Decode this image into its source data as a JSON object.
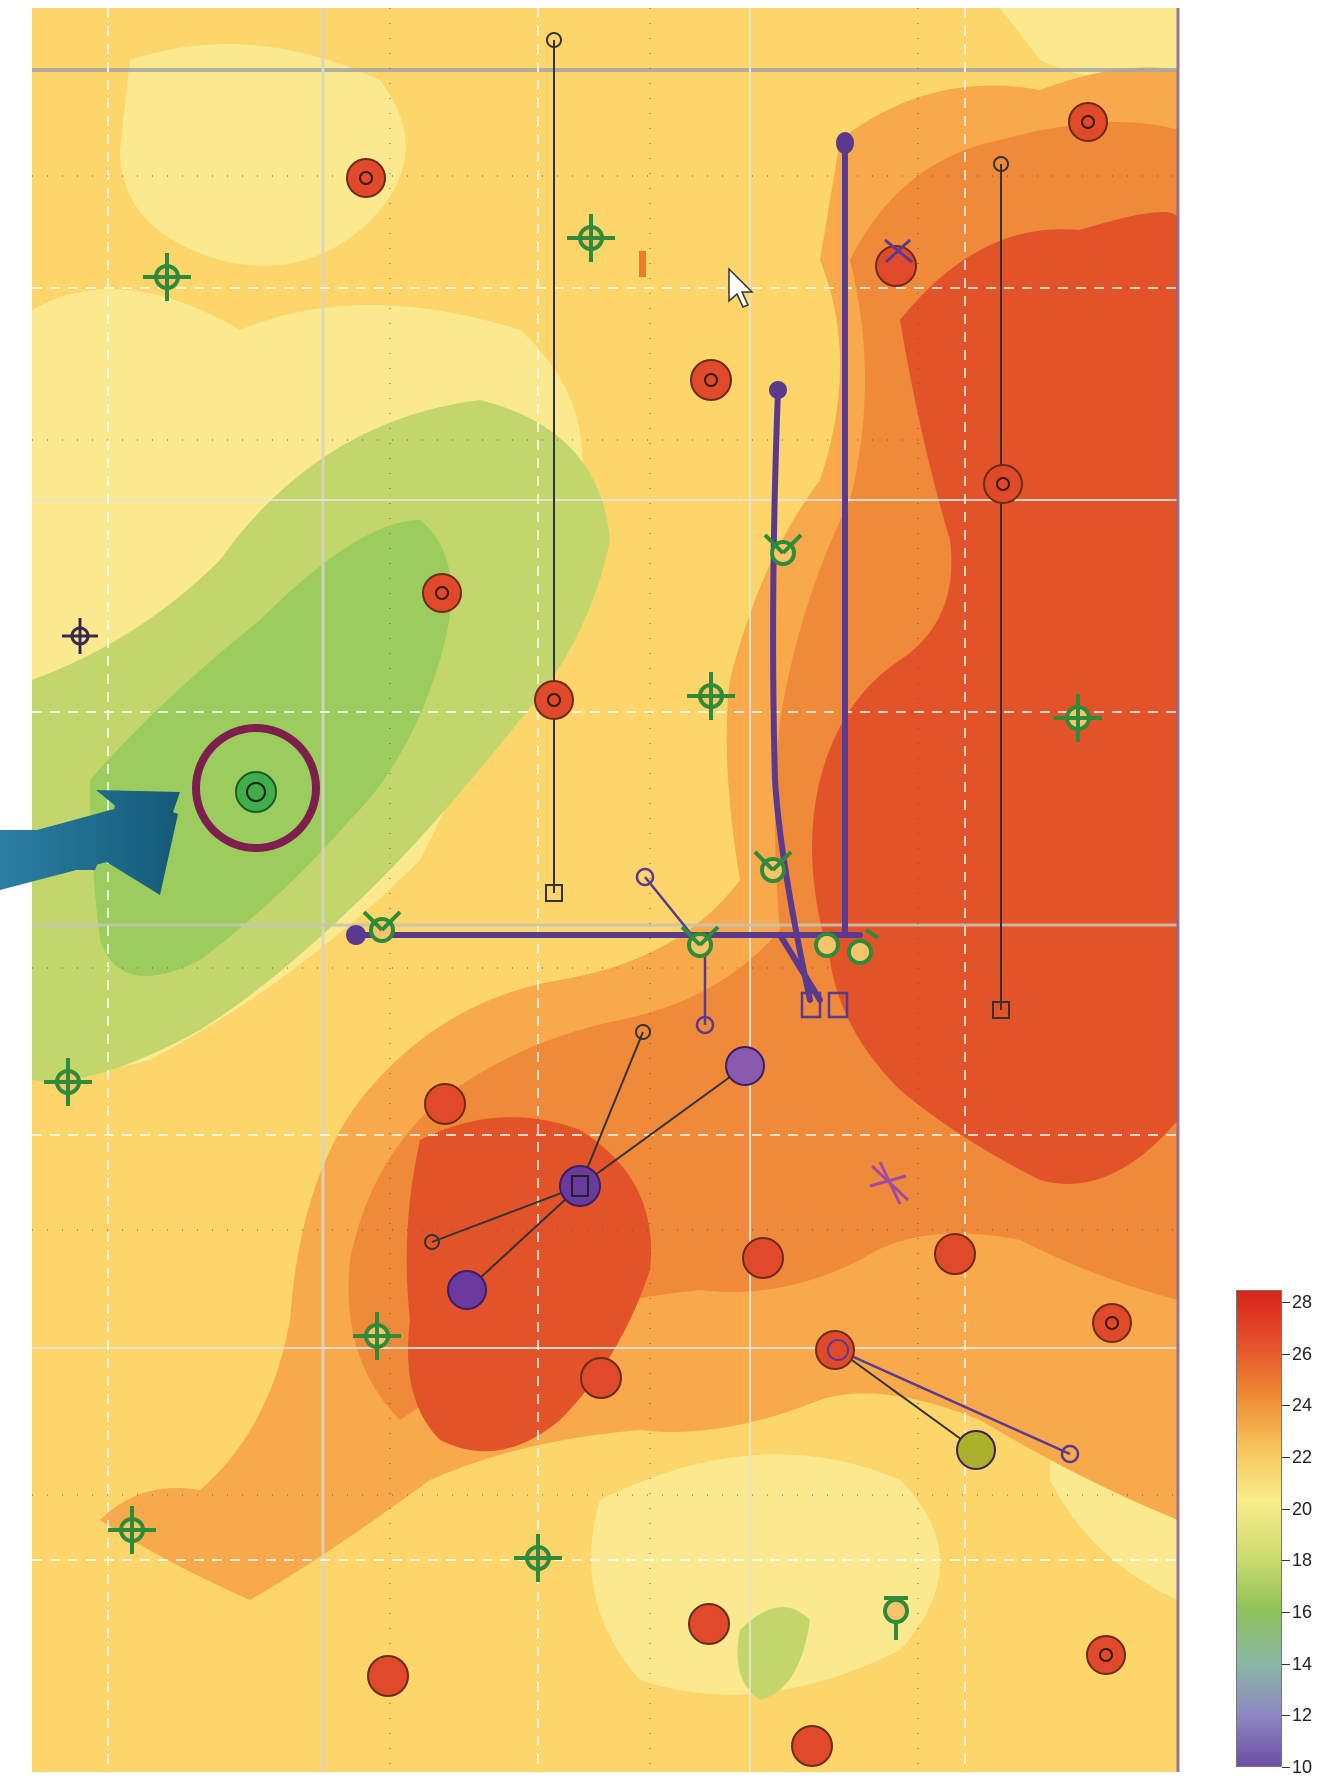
{
  "legend": {
    "ticks": [
      "28",
      "26",
      "24",
      "22",
      "20",
      "18",
      "16",
      "14",
      "12",
      "10"
    ],
    "colors": [
      "#d9231c",
      "#e5502a",
      "#ef8a35",
      "#f8c35a",
      "#f9ec8c",
      "#cddb6e",
      "#8fc35a",
      "#8ab8a3",
      "#8f89c3",
      "#6c4fa6"
    ]
  },
  "map": {
    "contour_colors": {
      "yellow_light": "#fbe98f",
      "yellow": "#fdd66b",
      "orange_light": "#f7a94c",
      "orange": "#ee8a3a",
      "red_orange": "#e2532a",
      "green_light": "#c2d66c",
      "green": "#9ccb5e"
    },
    "highlight": {
      "ring_color": "#7d1f4d",
      "arrow_color": "#1c6a8d",
      "well_color": "#3fae49"
    },
    "well_colors": {
      "red": "#e04a2a",
      "purple": "#6a3a9e",
      "green": "#2e8b3a",
      "olive": "#aab02a",
      "trajectory": "#5a3a8e"
    }
  }
}
